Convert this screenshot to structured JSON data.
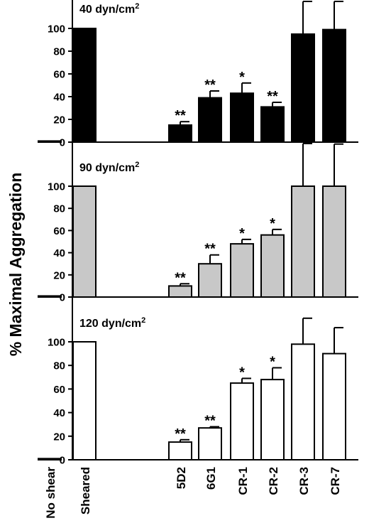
{
  "ylabel": "% Maximal Aggregation",
  "categories": [
    "No shear",
    "Sheared",
    "5D2",
    "6G1",
    "CR-1",
    "CR-2",
    "CR-3",
    "CR-7"
  ],
  "chart_data": [
    {
      "type": "bar",
      "title": "40 dyn/cm²",
      "title_main": "40 dyn/cm",
      "title_sup": "2",
      "ylim": [
        0,
        100
      ],
      "yticks": [
        "0",
        "20",
        "40",
        "60",
        "80",
        "100"
      ],
      "categories": [
        "No shear",
        "Sheared",
        "5D2",
        "6G1",
        "CR-1",
        "CR-2",
        "CR-3",
        "CR-7"
      ],
      "values": [
        1,
        100,
        15,
        39,
        43,
        31,
        95,
        99
      ],
      "errors": [
        0,
        0,
        3,
        6,
        9,
        4,
        30,
        28
      ],
      "significance": [
        "",
        "",
        "**",
        "**",
        "*",
        "**",
        "",
        ""
      ],
      "fill_color": "#000000"
    },
    {
      "type": "bar",
      "title": "90 dyn/cm²",
      "title_main": "90 dyn/cm",
      "title_sup": "2",
      "ylim": [
        0,
        100
      ],
      "yticks": [
        "0",
        "20",
        "40",
        "60",
        "80",
        "100"
      ],
      "categories": [
        "No shear",
        "Sheared",
        "5D2",
        "6G1",
        "CR-1",
        "CR-2",
        "CR-3",
        "CR-7"
      ],
      "values": [
        1,
        100,
        10,
        30,
        48,
        56,
        100,
        100
      ],
      "errors": [
        0,
        0,
        2,
        8,
        4,
        5,
        40,
        38
      ],
      "significance": [
        "",
        "",
        "**",
        "**",
        "*",
        "*",
        "",
        ""
      ],
      "fill_color": "#c8c8c8"
    },
    {
      "type": "bar",
      "title": "120 dyn/cm²",
      "title_main": "120 dyn/cm",
      "title_sup": "2",
      "ylim": [
        0,
        100
      ],
      "yticks": [
        "0",
        "20",
        "40",
        "60",
        "80",
        "100"
      ],
      "categories": [
        "No shear",
        "Sheared",
        "5D2",
        "6G1",
        "CR-1",
        "CR-2",
        "CR-3",
        "CR-7"
      ],
      "values": [
        1,
        100,
        15,
        27,
        65,
        68,
        98,
        90
      ],
      "errors": [
        0,
        0,
        2,
        1,
        4,
        10,
        22,
        22
      ],
      "significance": [
        "",
        "",
        "**",
        "**",
        "*",
        "*",
        "",
        ""
      ],
      "fill_color": "#ffffff"
    }
  ]
}
